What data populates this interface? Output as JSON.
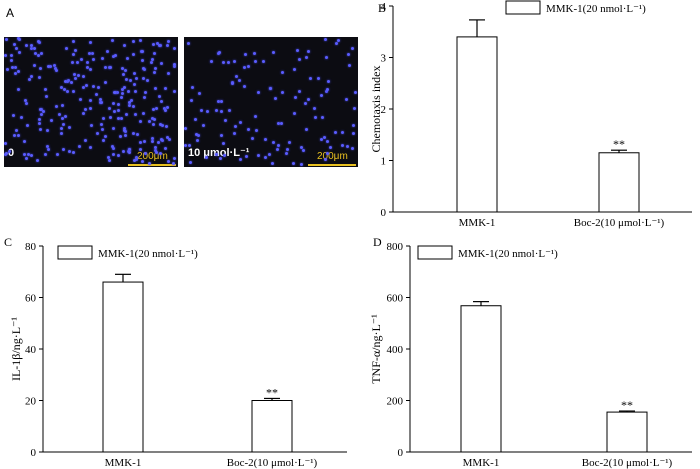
{
  "panel_a": {
    "letter": "A",
    "images": [
      {
        "condition_label": "0",
        "scale_label": "200μm"
      },
      {
        "condition_label": "10 μmol·L⁻¹",
        "scale_label": "200μm"
      }
    ]
  },
  "chart_data": [
    {
      "panel": "B",
      "type": "bar",
      "categories": [
        "MMK-1",
        "Boc-2(10 μmol·L⁻¹)"
      ],
      "values": [
        3.4,
        1.15
      ],
      "errors": [
        0.33,
        0.05
      ],
      "annotations": [
        "",
        "**"
      ],
      "ylabel": "Chemotaxis index",
      "ylim": [
        0,
        4
      ],
      "yticks": [
        0,
        1,
        2,
        3,
        4
      ],
      "legend": "MMK-1(20 nmol·L⁻¹)"
    },
    {
      "panel": "C",
      "type": "bar",
      "categories": [
        "MMK-1",
        "Boc-2(10 μmol·L⁻¹)"
      ],
      "values": [
        66,
        20
      ],
      "errors": [
        3,
        0.8
      ],
      "annotations": [
        "",
        "**"
      ],
      "ylabel": "IL-1β/ng·L⁻¹",
      "ylim": [
        0,
        80
      ],
      "yticks": [
        0,
        20,
        40,
        60,
        80
      ],
      "legend": "MMK-1(20 nmol·L⁻¹)"
    },
    {
      "panel": "D",
      "type": "bar",
      "categories": [
        "MMK-1",
        "Boc-2(10 μmol·L⁻¹)"
      ],
      "values": [
        568,
        155
      ],
      "errors": [
        16,
        4
      ],
      "annotations": [
        "",
        "**"
      ],
      "ylabel": "TNF-α/ng·L⁻¹",
      "ylim": [
        0,
        800
      ],
      "yticks": [
        0,
        200,
        400,
        600,
        800
      ],
      "legend": "MMK-1(20 nmol·L⁻¹)"
    }
  ]
}
